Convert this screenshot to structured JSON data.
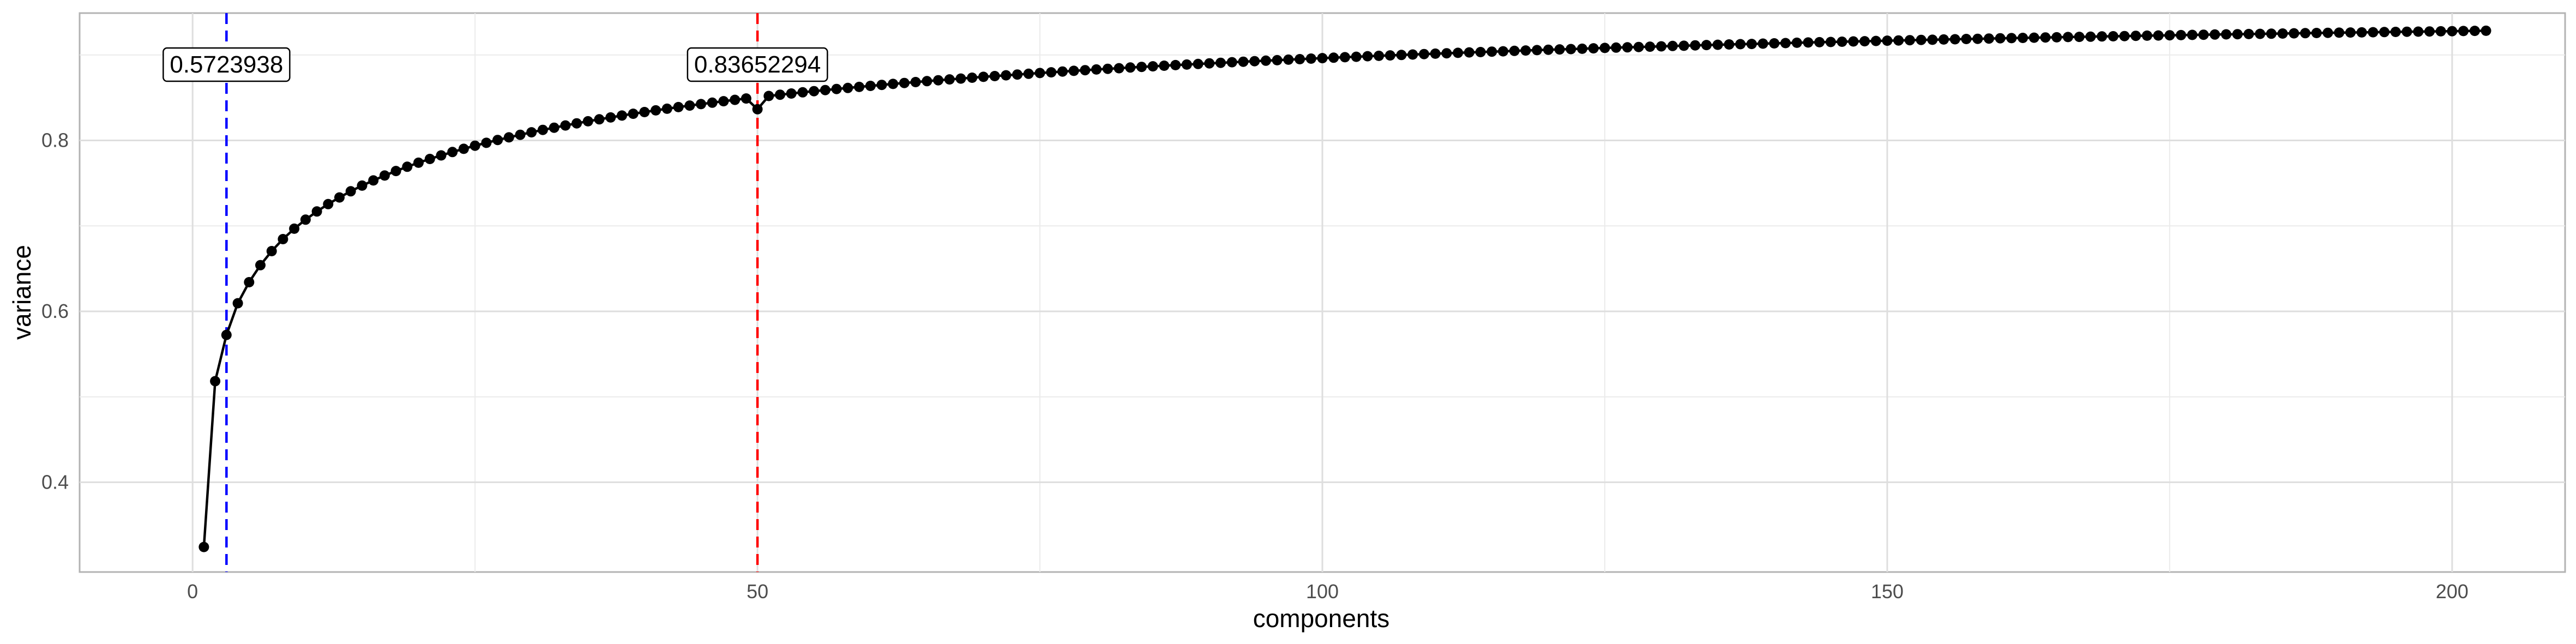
{
  "chart_data": {
    "type": "line",
    "xlabel": "components",
    "ylabel": "variance",
    "xlim": [
      -10,
      210
    ],
    "ylim": [
      0.295,
      0.949
    ],
    "x_ticks": [
      0,
      50,
      100,
      150,
      200
    ],
    "x_tick_labels": [
      "0",
      "50",
      "100",
      "150",
      "200"
    ],
    "y_ticks": [
      0.4,
      0.6,
      0.8
    ],
    "y_tick_labels": [
      "0.4",
      "0.6",
      "0.8"
    ],
    "x_minor_ticks": [
      25,
      75,
      125,
      175
    ],
    "y_minor_ticks": [
      0.5,
      0.7,
      0.9
    ],
    "grid": true,
    "theme": "minimal",
    "line_color": "#000000",
    "point_color": "#000000",
    "series": [
      {
        "x_start": 1,
        "x_step": 1,
        "values": [
          0.3243,
          0.5183,
          0.5724,
          0.6095,
          0.6341,
          0.654,
          0.6705,
          0.6845,
          0.6967,
          0.7073,
          0.7169,
          0.7255,
          0.7333,
          0.7405,
          0.7471,
          0.7532,
          0.7589,
          0.7642,
          0.7692,
          0.7739,
          0.7783,
          0.7825,
          0.7864,
          0.7902,
          0.7938,
          0.7972,
          0.8005,
          0.8036,
          0.8066,
          0.8095,
          0.8123,
          0.8149,
          0.8175,
          0.82,
          0.8224,
          0.8247,
          0.8269,
          0.8291,
          0.8312,
          0.8332,
          0.8352,
          0.8371,
          0.839,
          0.8408,
          0.8425,
          0.8442,
          0.8459,
          0.8475,
          0.8491,
          0.8365,
          0.852,
          0.8535,
          0.8549,
          0.8563,
          0.8576,
          0.8589,
          0.8602,
          0.8614,
          0.8626,
          0.8638,
          0.865,
          0.8661,
          0.8672,
          0.8683,
          0.8694,
          0.8704,
          0.8714,
          0.8724,
          0.8734,
          0.8744,
          0.8753,
          0.8762,
          0.8771,
          0.878,
          0.8789,
          0.8797,
          0.8806,
          0.8814,
          0.8822,
          0.883,
          0.8838,
          0.8845,
          0.8853,
          0.886,
          0.8867,
          0.8874,
          0.8881,
          0.8888,
          0.8895,
          0.8902,
          0.8908,
          0.8915,
          0.8921,
          0.8927,
          0.8933,
          0.8939,
          0.8945,
          0.8951,
          0.8957,
          0.8963,
          0.8968,
          0.8974,
          0.8979,
          0.8985,
          0.899,
          0.8995,
          0.9,
          0.9005,
          0.901,
          0.9015,
          0.902,
          0.9025,
          0.903,
          0.9034,
          0.9039,
          0.9043,
          0.9048,
          0.9052,
          0.9057,
          0.9061,
          0.9065,
          0.9069,
          0.9073,
          0.9078,
          0.9082,
          0.9086,
          0.9089,
          0.9093,
          0.9097,
          0.9101,
          0.9105,
          0.9108,
          0.9112,
          0.9116,
          0.9119,
          0.9123,
          0.9126,
          0.9129,
          0.9133,
          0.9136,
          0.9139,
          0.9143,
          0.9146,
          0.9149,
          0.9152,
          0.9155,
          0.9158,
          0.9161,
          0.9164,
          0.9167,
          0.917,
          0.9173,
          0.9176,
          0.9178,
          0.9181,
          0.9184,
          0.9187,
          0.9189,
          0.9192,
          0.9195,
          0.9197,
          0.92,
          0.9202,
          0.9205,
          0.9207,
          0.921,
          0.9212,
          0.9214,
          0.9217,
          0.9219,
          0.9221,
          0.9224,
          0.9226,
          0.9228,
          0.923,
          0.9232,
          0.9235,
          0.9237,
          0.9239,
          0.9241,
          0.9243,
          0.9245,
          0.9247,
          0.9249,
          0.9251,
          0.9253,
          0.9255,
          0.9257,
          0.9259,
          0.9261,
          0.9263,
          0.9264,
          0.9266,
          0.9268,
          0.927,
          0.9272,
          0.9273,
          0.9275,
          0.9277,
          0.9278,
          0.928,
          0.9282,
          0.9283
        ]
      }
    ],
    "reference_lines": [
      {
        "name": "vline-blue",
        "x": 3,
        "color": "#0000ff",
        "dash": "dashed",
        "label": "0.5723938",
        "label_y": 0.889,
        "label_x": 3
      },
      {
        "name": "vline-red",
        "x": 50,
        "color": "#ff0000",
        "dash": "dashed",
        "label": "0.83652294",
        "label_y": 0.889,
        "label_x": 50
      }
    ]
  }
}
